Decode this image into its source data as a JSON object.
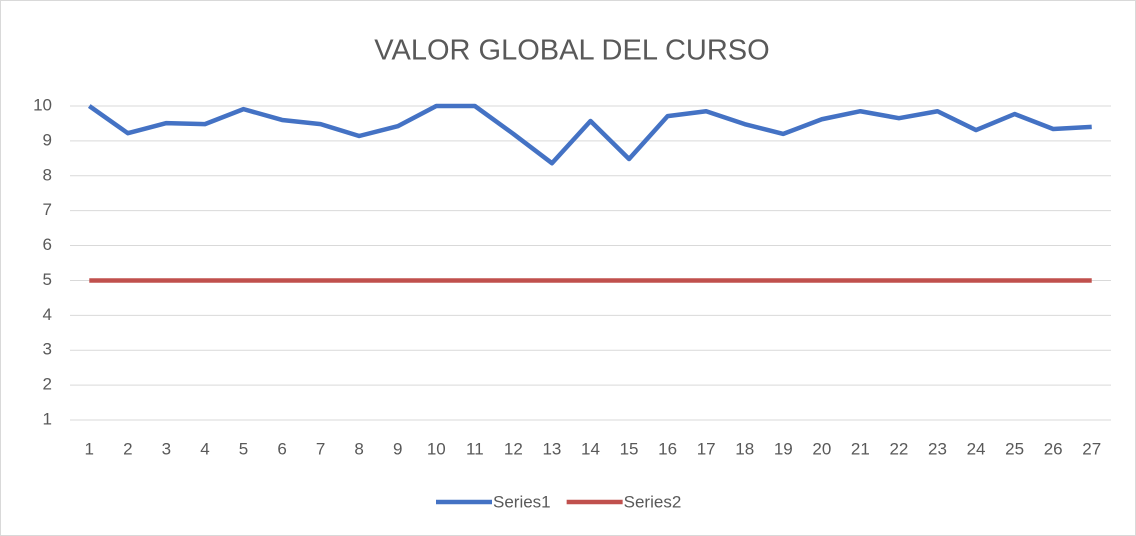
{
  "chart_data": {
    "type": "line",
    "title": "VALOR GLOBAL DEL CURSO",
    "categories": [
      "1",
      "2",
      "3",
      "4",
      "5",
      "6",
      "7",
      "8",
      "9",
      "10",
      "11",
      "12",
      "13",
      "14",
      "15",
      "16",
      "17",
      "18",
      "19",
      "20",
      "21",
      "22",
      "23",
      "24",
      "25",
      "26",
      "27"
    ],
    "series": [
      {
        "name": "Series1",
        "color": "#4472c4",
        "values": [
          10,
          9.22,
          9.51,
          9.48,
          9.91,
          9.6,
          9.48,
          9.14,
          9.42,
          10,
          10,
          9.2,
          8.36,
          9.57,
          8.48,
          9.71,
          9.85,
          9.48,
          9.2,
          9.62,
          9.85,
          9.65,
          9.85,
          9.31,
          9.77,
          9.34,
          9.4
        ]
      },
      {
        "name": "Series2",
        "color": "#c0504d",
        "values": [
          5,
          5,
          5,
          5,
          5,
          5,
          5,
          5,
          5,
          5,
          5,
          5,
          5,
          5,
          5,
          5,
          5,
          5,
          5,
          5,
          5,
          5,
          5,
          5,
          5,
          5,
          5
        ]
      }
    ],
    "ylim": [
      1,
      10
    ],
    "yticks": [
      1,
      2,
      3,
      4,
      5,
      6,
      7,
      8,
      9,
      10
    ],
    "grid": true,
    "legend": "bottom"
  }
}
